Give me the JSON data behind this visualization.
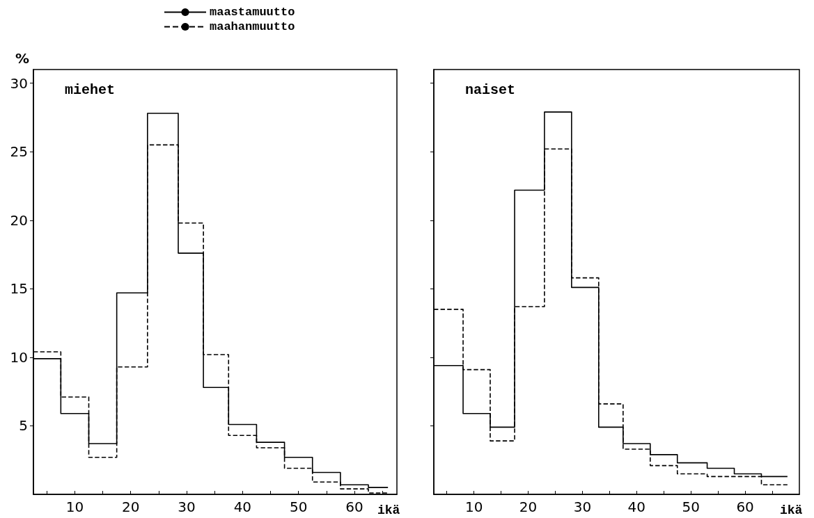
{
  "chart_data": [
    {
      "type": "step",
      "title": "miehet",
      "xlabel": "ikä",
      "ylabel": "%",
      "legend": "top",
      "x": [
        2.6,
        7.5,
        12.5,
        17.5,
        23,
        28.5,
        33,
        37.5,
        42.5,
        47.5,
        52.5,
        57.5,
        62.5,
        66
      ],
      "series": [
        {
          "name": "maastamuutto",
          "color": "#000000",
          "line_style": "solid",
          "values": [
            9.9,
            5.9,
            3.7,
            14.7,
            27.8,
            17.6,
            7.8,
            5.1,
            3.8,
            2.7,
            1.6,
            0.7,
            0.5,
            0.5
          ]
        },
        {
          "name": "maahanmuutto",
          "color": "#000000",
          "line_style": "dashed",
          "values": [
            10.4,
            7.1,
            2.7,
            9.3,
            25.5,
            19.8,
            10.2,
            4.3,
            3.4,
            1.9,
            0.9,
            0.4,
            0.1,
            0.1
          ]
        }
      ],
      "xlim": [
        2.6,
        67.6
      ],
      "ylim": [
        0,
        31
      ],
      "xticks": [
        {
          "value": 5,
          "label": null
        },
        10,
        {
          "value": 15,
          "label": null
        },
        20,
        {
          "value": 25,
          "label": null
        },
        30,
        {
          "value": 35,
          "label": null
        },
        40,
        {
          "value": 45,
          "label": null
        },
        50,
        {
          "value": 55,
          "label": null
        },
        60,
        {
          "value": 65,
          "label": null
        }
      ],
      "yticks": [
        5,
        10,
        15,
        20,
        25,
        30
      ]
    },
    {
      "type": "step",
      "title": "naiset",
      "xlabel": "ikä",
      "tick_labels": "x",
      "x": [
        2.6,
        8,
        13,
        17.5,
        23,
        28,
        33,
        37.5,
        42.5,
        47.5,
        53,
        58,
        63,
        67.8
      ],
      "series": [
        {
          "color": "#000000",
          "line_style": "solid",
          "values": [
            9.4,
            5.9,
            4.9,
            22.2,
            27.9,
            15.1,
            4.9,
            3.7,
            2.9,
            2.3,
            1.9,
            1.5,
            1.3,
            1.3
          ]
        },
        {
          "color": "#000000",
          "line_style": "dashed",
          "values": [
            13.5,
            9.1,
            3.9,
            13.7,
            25.2,
            15.8,
            6.6,
            3.3,
            2.1,
            1.5,
            1.3,
            1.3,
            0.7,
            0.7
          ]
        }
      ],
      "xlim": [
        2.6,
        70
      ],
      "ylim": [
        0,
        31
      ],
      "xticks": [
        {
          "value": 5,
          "label": null
        },
        10,
        {
          "value": 15,
          "label": null
        },
        20,
        {
          "value": 25,
          "label": null
        },
        30,
        {
          "value": 35,
          "label": null
        },
        40,
        {
          "value": 45,
          "label": null
        },
        50,
        {
          "value": 55,
          "label": null
        },
        60,
        {
          "value": 65,
          "label": null
        }
      ],
      "yticks": [
        5,
        10,
        15,
        20,
        25,
        30
      ]
    }
  ]
}
